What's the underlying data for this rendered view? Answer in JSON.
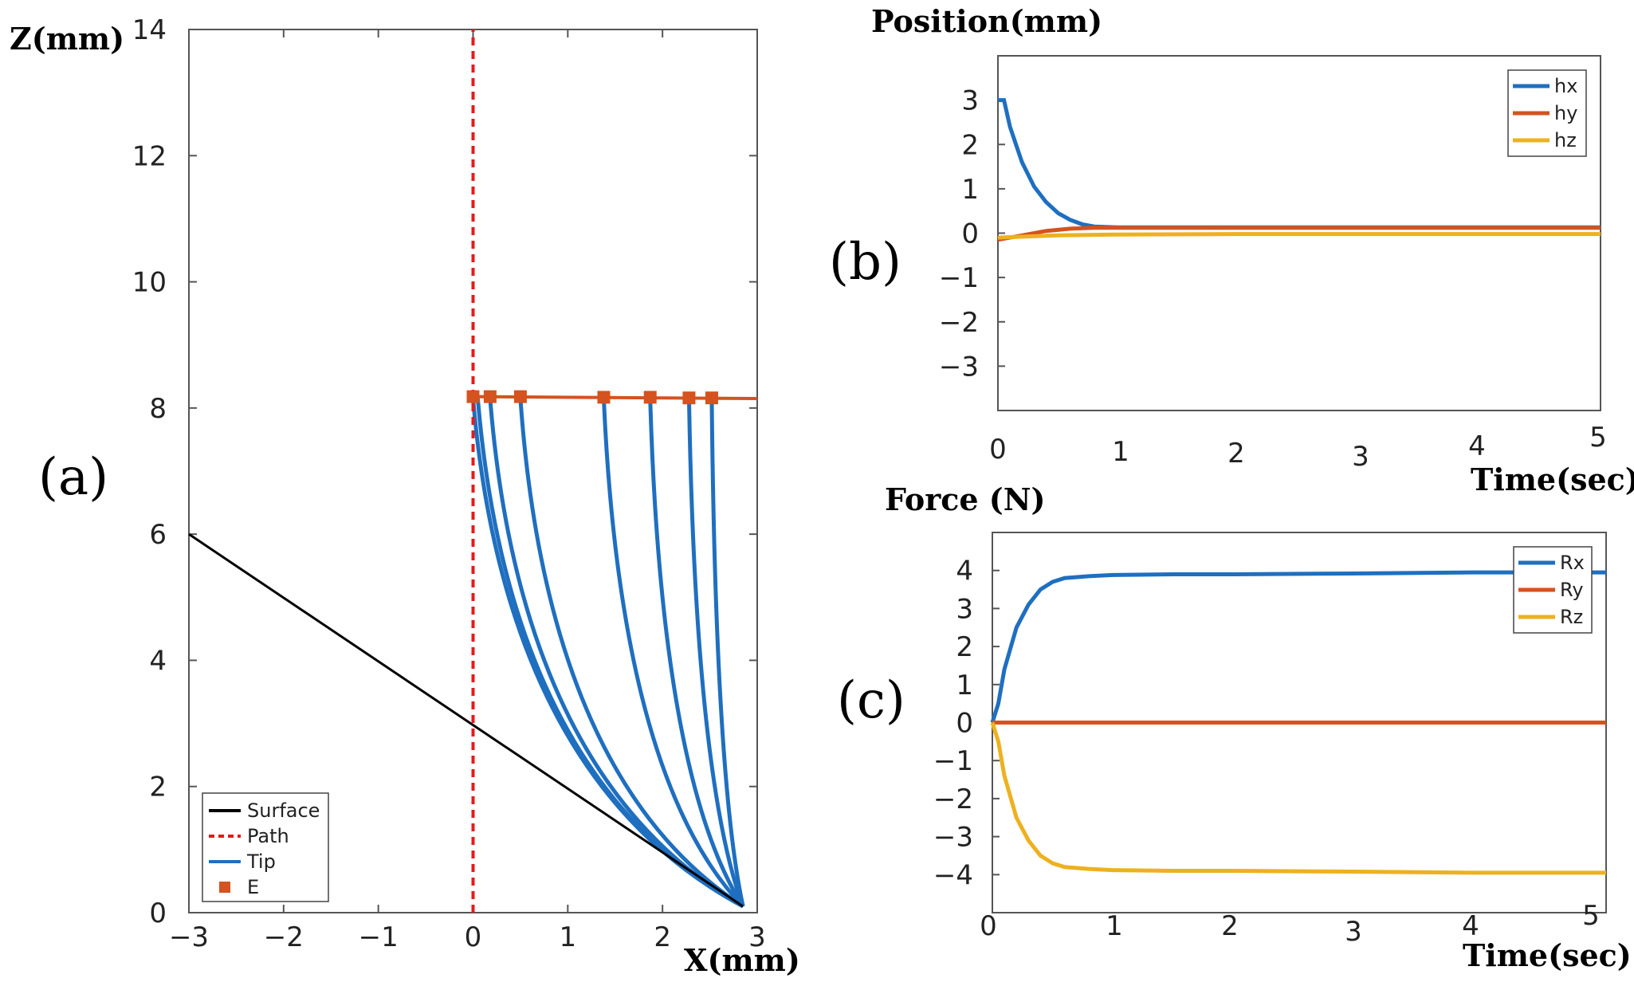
{
  "chart_data": [
    {
      "panel": "(a)",
      "type": "line",
      "xlabel": "X(mm)",
      "ylabel": "Z(mm)",
      "xlim": [
        -3,
        3
      ],
      "ylim": [
        0,
        14
      ],
      "xticks": [
        "−3",
        "−2",
        "−1",
        "0",
        "1",
        "2",
        "3"
      ],
      "yticks": [
        "0",
        "2",
        "4",
        "6",
        "8",
        "10",
        "12",
        "14"
      ],
      "legend": [
        "Surface",
        "Path",
        "Tip",
        "E"
      ],
      "legend_position": "bottom-left",
      "series": [
        {
          "name": "Surface",
          "color": "#000000",
          "x": [
            -3,
            2.85
          ],
          "y": [
            6,
            0.1
          ]
        },
        {
          "name": "Path",
          "color": "#e41a1c",
          "style": "dashed",
          "x": [
            0,
            0
          ],
          "y": [
            0,
            14
          ]
        },
        {
          "name": "Tip",
          "color": "#1f6fc0",
          "base": [
            2.85,
            0.1
          ],
          "tops": [
            [
              0.0,
              8.15
            ],
            [
              0.05,
              8.15
            ],
            [
              0.18,
              8.15
            ],
            [
              0.5,
              8.15
            ],
            [
              1.38,
              8.15
            ],
            [
              1.87,
              8.15
            ],
            [
              2.28,
              8.15
            ],
            [
              2.52,
              8.15
            ]
          ]
        },
        {
          "name": "E",
          "color": "#d4531e",
          "line_x": [
            0,
            3
          ],
          "line_y": [
            8.18,
            8.15
          ],
          "x": [
            0.0,
            0.18,
            0.5,
            1.38,
            1.87,
            2.28,
            2.52
          ],
          "y": [
            8.18,
            8.18,
            8.18,
            8.17,
            8.17,
            8.16,
            8.16
          ]
        }
      ]
    },
    {
      "panel": "(b)",
      "type": "line",
      "title": "Position(mm)",
      "xlabel": "Time(sec)",
      "xlim": [
        0,
        5
      ],
      "ylim": [
        -4,
        4
      ],
      "xticks": [
        "0",
        "1",
        "2",
        "3",
        "4",
        "5"
      ],
      "yticks": [
        "3",
        "2",
        "1",
        "0",
        "−1",
        "−2",
        "−3"
      ],
      "legend_position": "top-right",
      "series": [
        {
          "name": "hx",
          "color": "#1f6fc0",
          "x": [
            0,
            0.05,
            0.1,
            0.2,
            0.3,
            0.4,
            0.5,
            0.6,
            0.7,
            0.8,
            1.0,
            2.0,
            3.0,
            4.0,
            5.0
          ],
          "y": [
            3.0,
            3.0,
            2.4,
            1.6,
            1.05,
            0.7,
            0.45,
            0.3,
            0.2,
            0.15,
            0.13,
            0.13,
            0.13,
            0.13,
            0.13
          ]
        },
        {
          "name": "hy",
          "color": "#d4531e",
          "x": [
            0,
            0.2,
            0.4,
            0.6,
            0.8,
            1.0,
            2.0,
            3.0,
            4.0,
            5.0
          ],
          "y": [
            -0.15,
            -0.05,
            0.05,
            0.1,
            0.12,
            0.12,
            0.12,
            0.12,
            0.12,
            0.12
          ]
        },
        {
          "name": "hz",
          "color": "#edb120",
          "x": [
            0,
            0.5,
            1.0,
            2.0,
            3.0,
            4.0,
            5.0
          ],
          "y": [
            -0.1,
            -0.05,
            -0.03,
            -0.02,
            -0.02,
            -0.02,
            -0.02
          ]
        }
      ]
    },
    {
      "panel": "(c)",
      "type": "line",
      "title": "Force (N)",
      "xlabel": "Time(sec)",
      "xlim": [
        0,
        5.1
      ],
      "ylim": [
        -5,
        5
      ],
      "xticks": [
        "0",
        "1",
        "2",
        "3",
        "4",
        "5"
      ],
      "yticks": [
        "4",
        "3",
        "2",
        "1",
        "0",
        "−1",
        "−2",
        "−3",
        "−4"
      ],
      "legend_position": "top-right",
      "series": [
        {
          "name": "Rx",
          "color": "#1f6fc0",
          "x": [
            0,
            0.05,
            0.1,
            0.2,
            0.3,
            0.4,
            0.5,
            0.6,
            0.8,
            1.0,
            1.5,
            2.0,
            3.0,
            4.0,
            5.1
          ],
          "y": [
            0,
            0.5,
            1.4,
            2.5,
            3.1,
            3.5,
            3.7,
            3.8,
            3.85,
            3.88,
            3.9,
            3.9,
            3.92,
            3.95,
            3.95
          ]
        },
        {
          "name": "Ry",
          "color": "#d4531e",
          "x": [
            0,
            5.1
          ],
          "y": [
            0,
            0
          ]
        },
        {
          "name": "Rz",
          "color": "#edb120",
          "x": [
            0,
            0.05,
            0.1,
            0.2,
            0.3,
            0.4,
            0.5,
            0.6,
            0.8,
            1.0,
            1.5,
            2.0,
            3.0,
            4.0,
            5.1
          ],
          "y": [
            0,
            -0.5,
            -1.4,
            -2.5,
            -3.1,
            -3.5,
            -3.7,
            -3.8,
            -3.85,
            -3.88,
            -3.9,
            -3.9,
            -3.92,
            -3.95,
            -3.95
          ]
        }
      ]
    }
  ],
  "labels": {
    "panel_a": "(a)",
    "panel_b": "(b)",
    "panel_c": "(c)",
    "a_ylabel": "Z(mm)",
    "a_xlabel": "X(mm)",
    "b_title": "Position(mm)",
    "b_xlabel": "Time(sec)",
    "c_title": "Force (N)",
    "c_xlabel": "Time(sec)"
  }
}
